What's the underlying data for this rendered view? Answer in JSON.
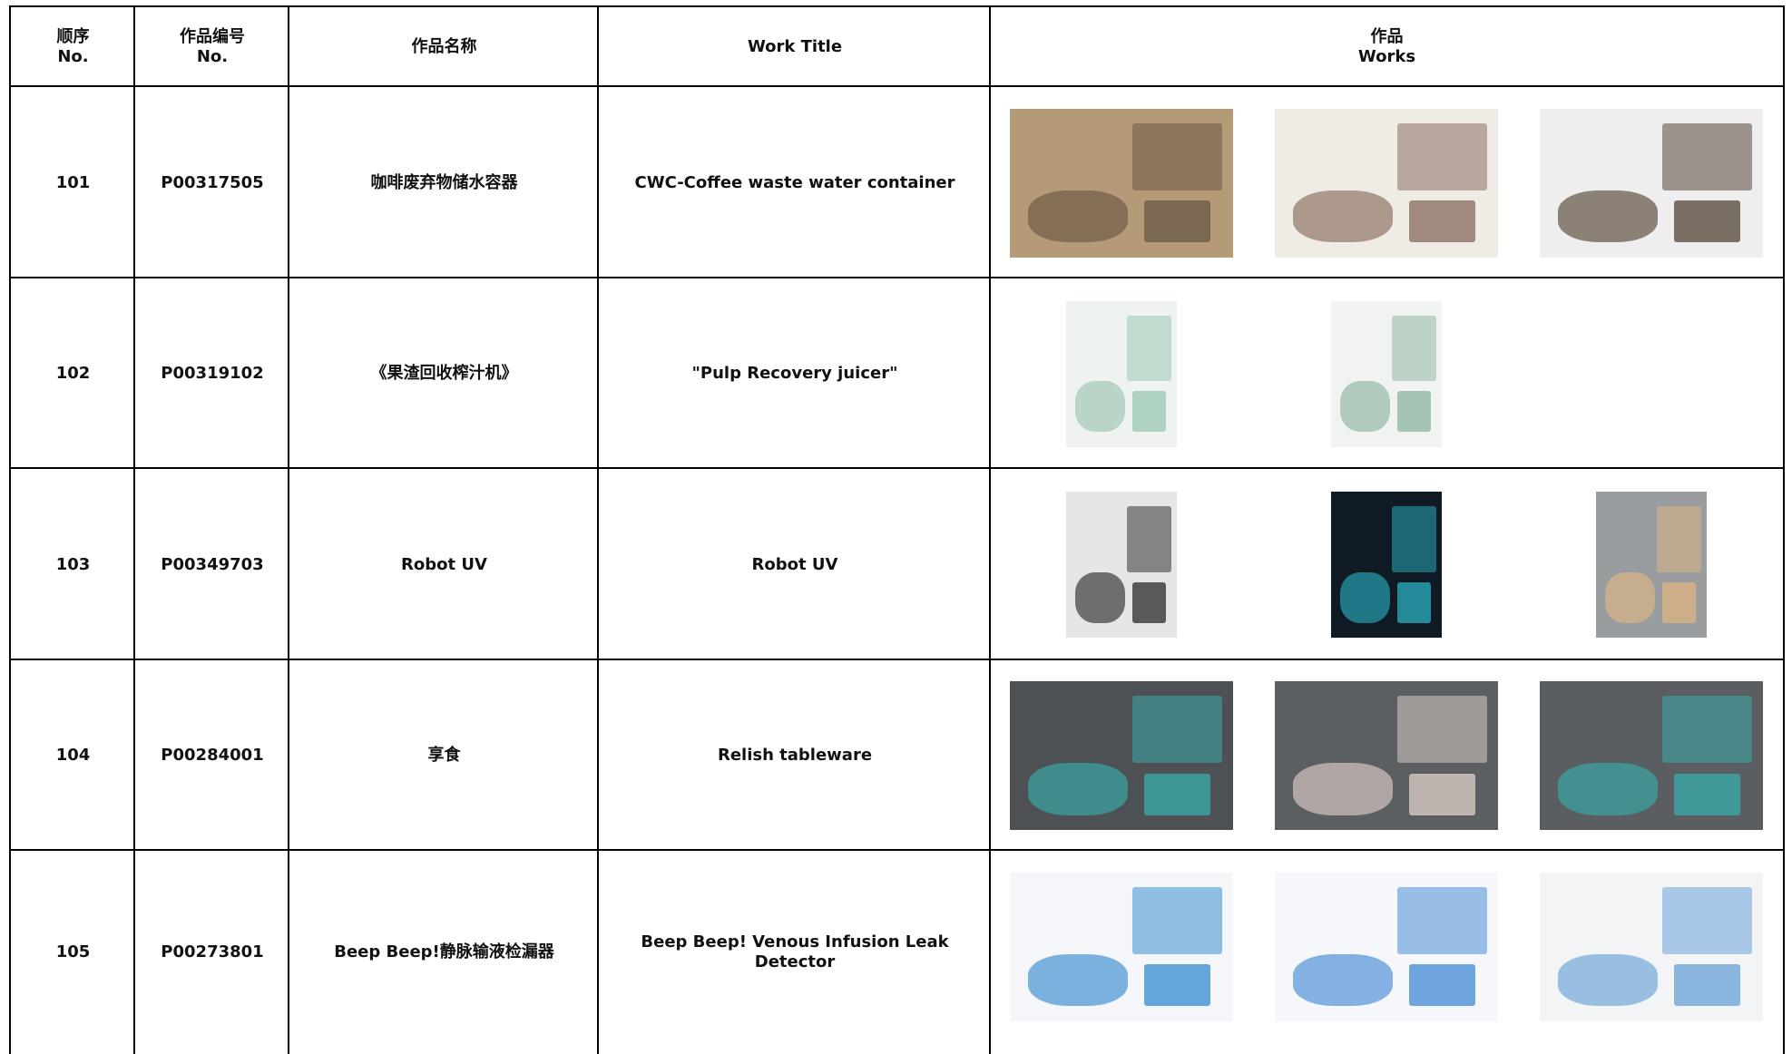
{
  "header": [
    [
      "顺序",
      "No."
    ],
    [
      "作品编号",
      "No."
    ],
    [
      "作品名称"
    ],
    [
      "Work Title"
    ],
    [
      "作品",
      "Works"
    ]
  ],
  "rows": [
    [
      "101",
      "P00317505",
      "咖啡废弃物储水容器",
      "CWC-Coffee waste water container"
    ],
    [
      "102",
      "P00319102",
      "《果渣回收榨汁机》",
      "\"Pulp Recovery juicer\""
    ],
    [
      "103",
      "P00349703",
      "Robot UV",
      "Robot UV"
    ],
    [
      "104",
      "P00284001",
      "享食",
      "Relish tableware"
    ],
    [
      "105",
      "P00273801",
      "Beep Beep!静脉输液检漏器",
      "Beep Beep! Venous Infusion Leak Detector"
    ]
  ]
}
